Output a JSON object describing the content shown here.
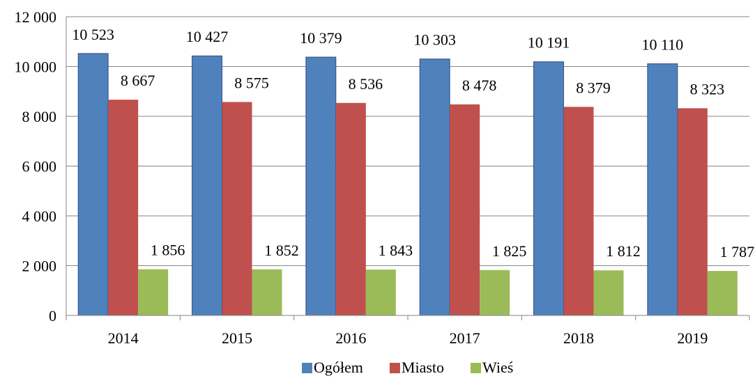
{
  "chart_data": {
    "type": "bar",
    "categories": [
      "2014",
      "2015",
      "2016",
      "2017",
      "2018",
      "2019"
    ],
    "series": [
      {
        "name": "Ogółem",
        "color": "#4F81BD",
        "values": [
          10523,
          10427,
          10379,
          10303,
          10191,
          10110
        ],
        "labels": [
          "10 523",
          "10 427",
          "10 379",
          "10 303",
          "10 191",
          "10 110"
        ]
      },
      {
        "name": "Miasto",
        "color": "#C0504D",
        "values": [
          8667,
          8575,
          8536,
          8478,
          8379,
          8323
        ],
        "labels": [
          "8 667",
          "8 575",
          "8 536",
          "8 478",
          "8 379",
          "8 323"
        ]
      },
      {
        "name": "Wieś",
        "color": "#9BBB59",
        "values": [
          1856,
          1852,
          1843,
          1825,
          1812,
          1787
        ],
        "labels": [
          "1 856",
          "1 852",
          "1 843",
          "1 825",
          "1 812",
          "1 787"
        ]
      }
    ],
    "title": "",
    "xlabel": "",
    "ylabel": "",
    "ylim": [
      0,
      12000
    ],
    "yticks": [
      0,
      2000,
      4000,
      6000,
      8000,
      10000,
      12000
    ],
    "ytick_labels": [
      "0",
      "2 000",
      "4 000",
      "6 000",
      "8 000",
      "10 000",
      "12 000"
    ],
    "grid": true,
    "legend_position": "bottom"
  }
}
